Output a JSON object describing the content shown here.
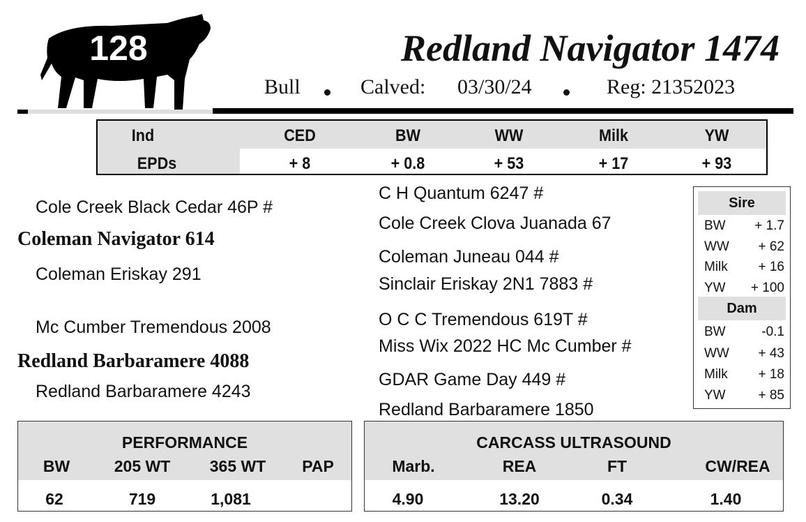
{
  "header": {
    "lot_number": "128",
    "name": "Redland Navigator 1474",
    "sex": "Bull",
    "calved_label": "Calved:",
    "calved_date": "03/30/24",
    "reg": "Reg: 21352023",
    "logo_icon": "bull-silhouette-icon"
  },
  "epds": {
    "row_label_top": "Ind",
    "row_label_bottom": "EPDs",
    "columns": [
      "CED",
      "BW",
      "WW",
      "Milk",
      "YW"
    ],
    "values": [
      "+ 8",
      "+ 0.8",
      "+ 53",
      "+ 17",
      "+ 93"
    ]
  },
  "pedigree": {
    "sire": "Coleman Navigator 614",
    "sire_sire": "Cole Creek Black Cedar 46P #",
    "sire_dam": "Coleman Eriskay 291",
    "dam": "Redland Barbaramere 4088",
    "dam_sire": "Mc Cumber Tremendous 2008",
    "dam_dam": "Redland Barbaramere 4243",
    "great": [
      "C H Quantum 6247 #",
      "Cole Creek Clova Juanada 67",
      "Coleman Juneau 044 #",
      "Sinclair Eriskay 2N1 7883 #",
      "O C C Tremendous 619T #",
      "Miss Wix 2022 HC Mc Cumber #",
      "GDAR Game Day 449 #",
      "Redland Barbaramere 1850"
    ]
  },
  "parent_epds": {
    "sire": {
      "title": "Sire",
      "rows": [
        {
          "k": "BW",
          "v": "+ 1.7"
        },
        {
          "k": "WW",
          "v": "+ 62"
        },
        {
          "k": "Milk",
          "v": "+ 16"
        },
        {
          "k": "YW",
          "v": "+ 100"
        }
      ]
    },
    "dam": {
      "title": "Dam",
      "rows": [
        {
          "k": "BW",
          "v": "-0.1"
        },
        {
          "k": "WW",
          "v": "+ 43"
        },
        {
          "k": "Milk",
          "v": "+ 18"
        },
        {
          "k": "YW",
          "v": "+ 85"
        }
      ]
    }
  },
  "performance": {
    "title": "PERFORMANCE",
    "columns": [
      "BW",
      "205 WT",
      "365 WT",
      "PAP"
    ],
    "values": [
      "62",
      "719",
      "1,081",
      ""
    ]
  },
  "carcass": {
    "title": "CARCASS ULTRASOUND",
    "columns": [
      "Marb.",
      "REA",
      "FT",
      "CW/REA"
    ],
    "values": [
      "4.90",
      "13.20",
      "0.34",
      "1.40"
    ]
  }
}
